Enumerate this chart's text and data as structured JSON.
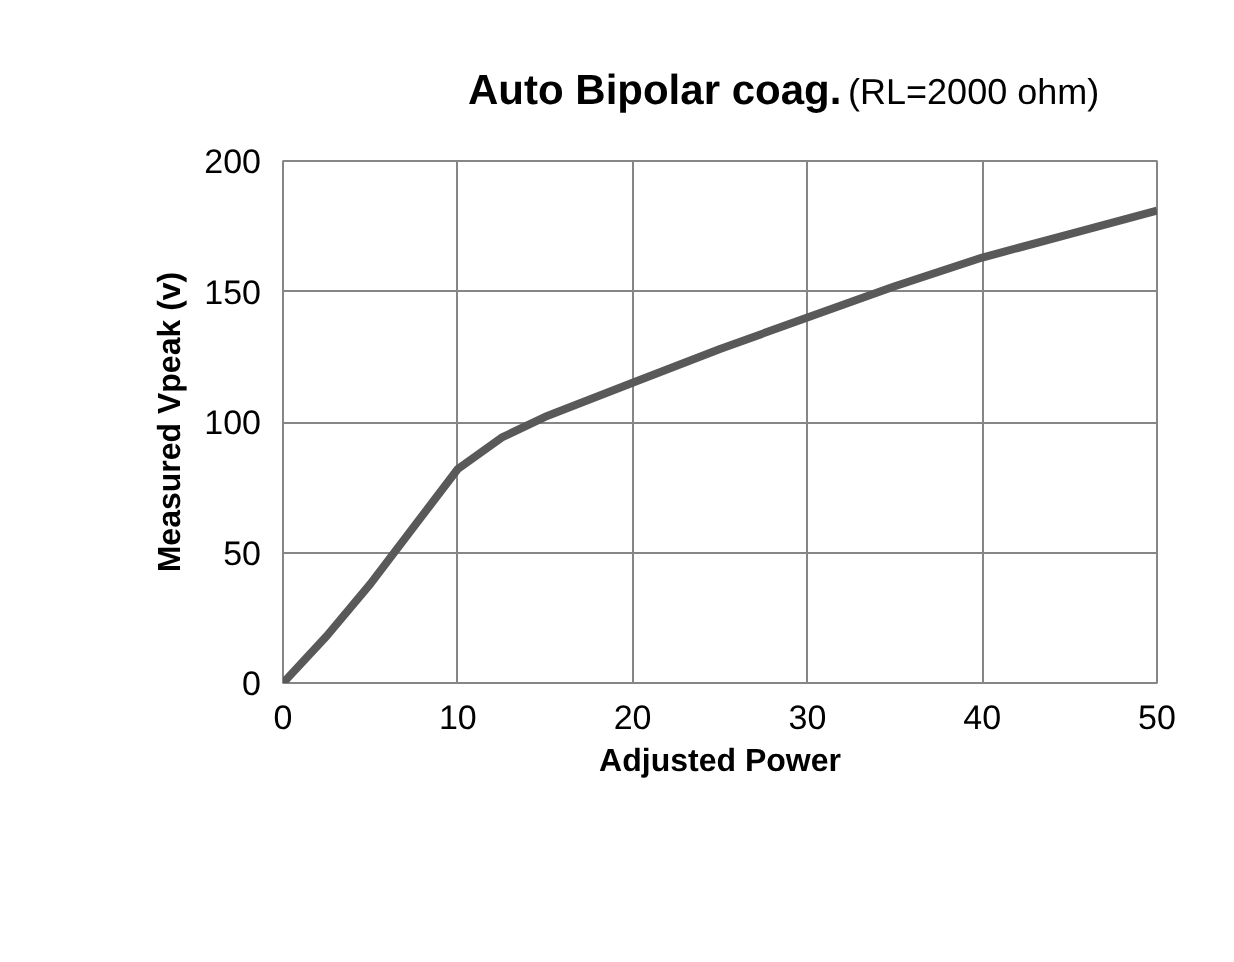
{
  "chart_data": {
    "type": "line",
    "title": "Auto Bipolar coag.",
    "subtitle": "(RL=2000 ohm)",
    "xlabel": "Adjusted Power",
    "ylabel": "Measured Vpeak (v)",
    "x": [
      0,
      2.5,
      5,
      7.5,
      10,
      12.5,
      15,
      20,
      25,
      30,
      35,
      40,
      45,
      50
    ],
    "series": [
      {
        "color": "#595959",
        "values": [
          0,
          18,
          38,
          60,
          82,
          94,
          102,
          115,
          128,
          140,
          152,
          163,
          172,
          181
        ]
      }
    ],
    "xlim": [
      0,
      50
    ],
    "ylim": [
      0,
      200
    ],
    "xticks": [
      0,
      10,
      20,
      30,
      40,
      50
    ],
    "yticks": [
      0,
      50,
      100,
      150,
      200
    ],
    "grid": true,
    "marker": "none",
    "line_style": "solid"
  }
}
